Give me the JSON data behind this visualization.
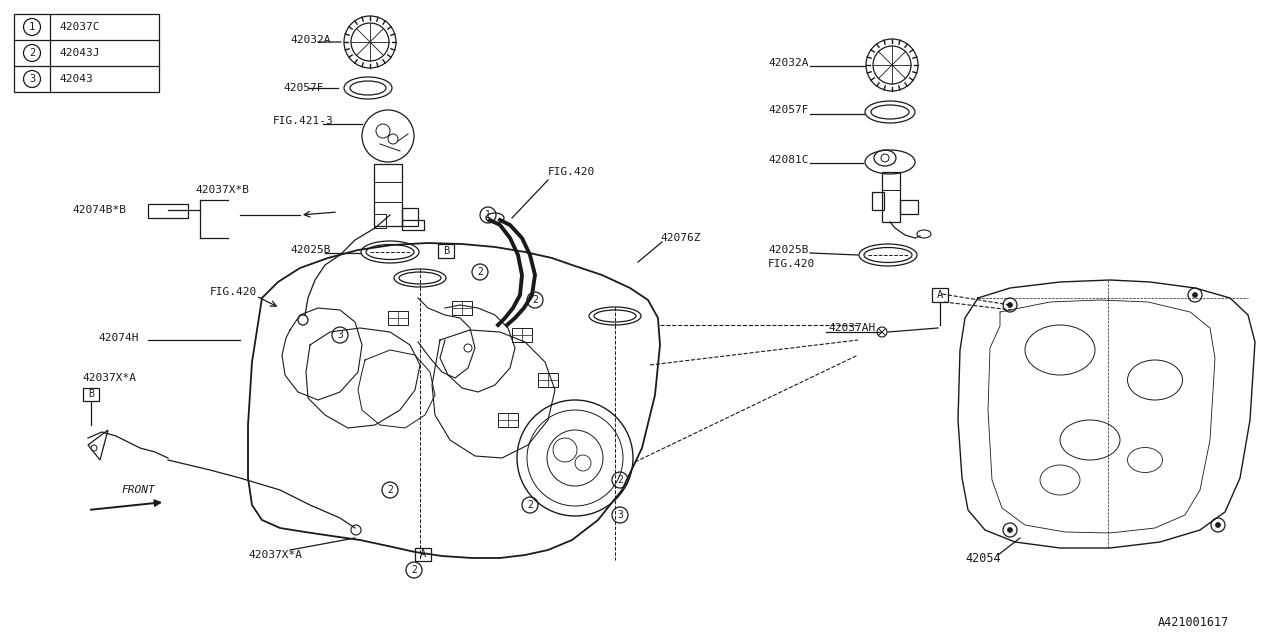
{
  "bg_color": "#ffffff",
  "line_color": "#1a1a1a",
  "font_color": "#1a1a1a",
  "diagram_id": "A421001617",
  "legend": [
    {
      "num": "1",
      "code": "42037C"
    },
    {
      "num": "2",
      "code": "42043J"
    },
    {
      "num": "3",
      "code": "42043"
    }
  ],
  "figsize": [
    12.8,
    6.4
  ],
  "dpi": 100
}
